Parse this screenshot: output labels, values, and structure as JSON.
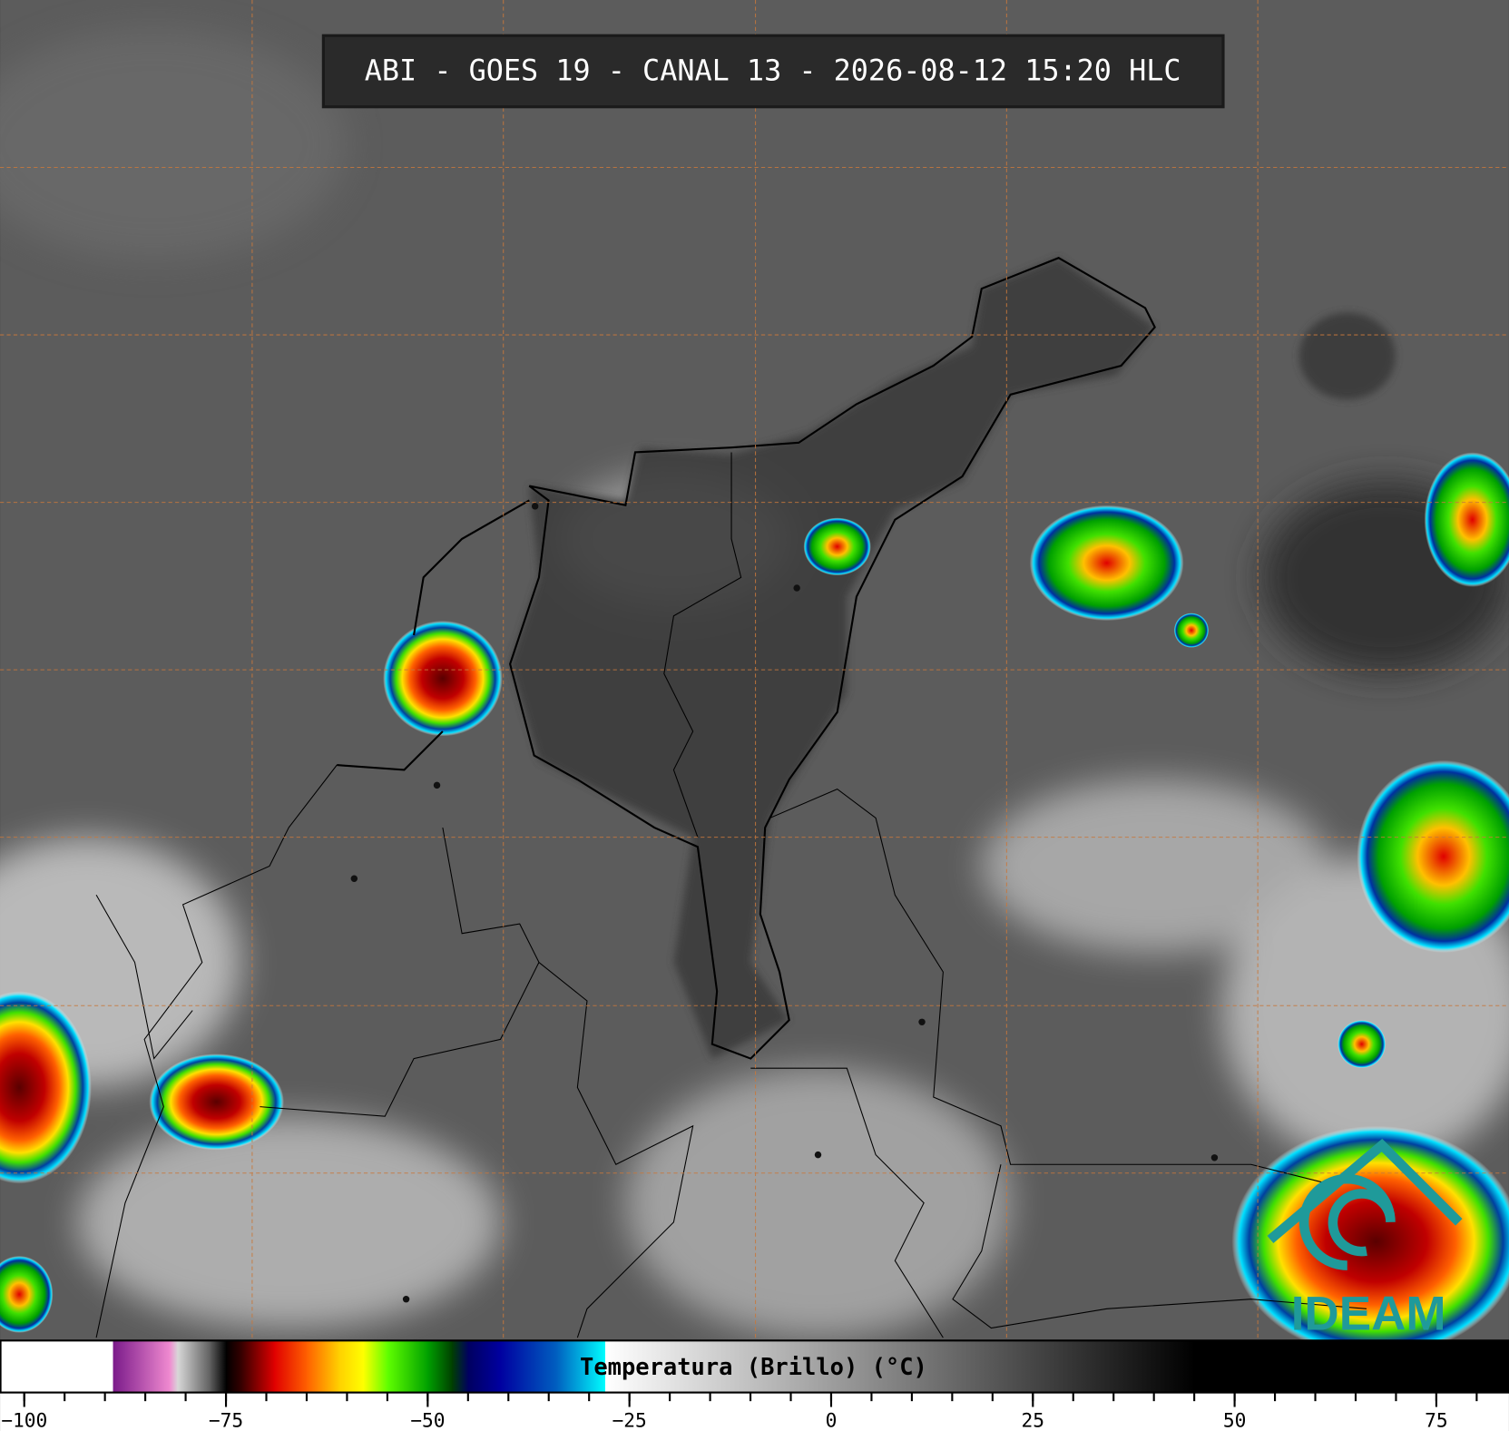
{
  "header": {
    "title": "ABI - GOES 19 - CANAL 13 - 2026-08-12 15:20 HLC"
  },
  "logo": {
    "text": "IDEAM"
  },
  "chart_data": {
    "type": "colorbar",
    "title": "Temperatura (Brillo) (°C)",
    "xlim": [
      -103,
      84
    ],
    "xticks": [
      {
        "value": -100,
        "label": "−100"
      },
      {
        "value": -75,
        "label": "−75"
      },
      {
        "value": -50,
        "label": "−50"
      },
      {
        "value": -25,
        "label": "−25"
      },
      0,
      25,
      50,
      75
    ],
    "colormap": [
      {
        "value": -103,
        "color": "#ffffff"
      },
      {
        "value": -89,
        "color": "#ffffff"
      },
      {
        "value": -89,
        "color": "#7a1a8a"
      },
      {
        "value": -82,
        "color": "#f08ad0"
      },
      {
        "value": -81,
        "color": "#d8d8d8"
      },
      {
        "value": -77,
        "color": "#606060"
      },
      {
        "value": -75,
        "color": "#000000"
      },
      {
        "value": -73,
        "color": "#3a0000"
      },
      {
        "value": -69,
        "color": "#e00000"
      },
      {
        "value": -65,
        "color": "#ff6000"
      },
      {
        "value": -61,
        "color": "#ffd000"
      },
      {
        "value": -58,
        "color": "#ffff00"
      },
      {
        "value": -55,
        "color": "#60ff00"
      },
      {
        "value": -50,
        "color": "#00a000"
      },
      {
        "value": -47,
        "color": "#004000"
      },
      {
        "value": -45,
        "color": "#000060"
      },
      {
        "value": -41,
        "color": "#0000a0"
      },
      {
        "value": -34,
        "color": "#0060c0"
      },
      {
        "value": -28,
        "color": "#00ffff"
      },
      {
        "value": -28,
        "color": "#ffffff"
      },
      {
        "value": 45,
        "color": "#000000"
      },
      {
        "value": 84,
        "color": "#000000"
      }
    ]
  }
}
